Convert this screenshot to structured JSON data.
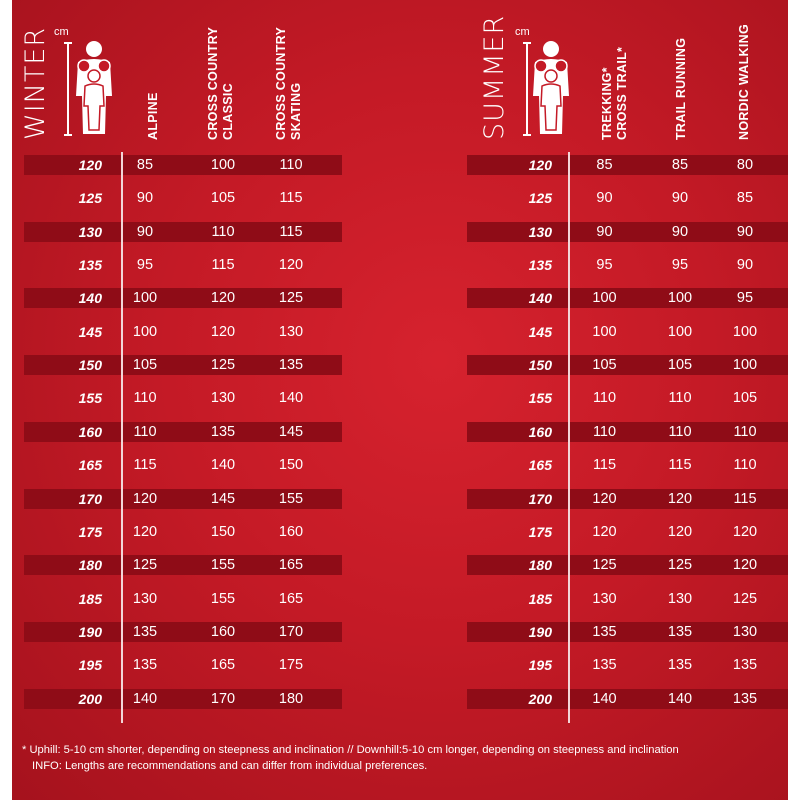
{
  "colors": {
    "background": "#c41a26",
    "stripe": "#8f0c17",
    "text": "#ffffff"
  },
  "winter": {
    "title": "WINTER",
    "unit": "cm",
    "icon": "family-icon",
    "columns": [
      [
        "ALPINE"
      ],
      [
        "CROSS COUNTRY",
        "CLASSIC"
      ],
      [
        "CROSS COUNTRY",
        "SKATING"
      ]
    ],
    "rows": [
      [
        "120",
        "85",
        "100",
        "110"
      ],
      [
        "125",
        "90",
        "105",
        "115"
      ],
      [
        "130",
        "90",
        "110",
        "115"
      ],
      [
        "135",
        "95",
        "115",
        "120"
      ],
      [
        "140",
        "100",
        "120",
        "125"
      ],
      [
        "145",
        "100",
        "120",
        "130"
      ],
      [
        "150",
        "105",
        "125",
        "135"
      ],
      [
        "155",
        "110",
        "130",
        "140"
      ],
      [
        "160",
        "110",
        "135",
        "145"
      ],
      [
        "165",
        "115",
        "140",
        "150"
      ],
      [
        "170",
        "120",
        "145",
        "155"
      ],
      [
        "175",
        "120",
        "150",
        "160"
      ],
      [
        "180",
        "125",
        "155",
        "165"
      ],
      [
        "185",
        "130",
        "155",
        "165"
      ],
      [
        "190",
        "135",
        "160",
        "170"
      ],
      [
        "195",
        "135",
        "165",
        "175"
      ],
      [
        "200",
        "140",
        "170",
        "180"
      ]
    ]
  },
  "summer": {
    "title": "SUMMER",
    "unit": "cm",
    "icon": "family-icon",
    "columns": [
      [
        "TREKKING*",
        "CROSS TRAIL*"
      ],
      [
        "TRAIL RUNNING"
      ],
      [
        "NORDIC WALKING"
      ]
    ],
    "rows": [
      [
        "120",
        "85",
        "85",
        "80"
      ],
      [
        "125",
        "90",
        "90",
        "85"
      ],
      [
        "130",
        "90",
        "90",
        "90"
      ],
      [
        "135",
        "95",
        "95",
        "90"
      ],
      [
        "140",
        "100",
        "100",
        "95"
      ],
      [
        "145",
        "100",
        "100",
        "100"
      ],
      [
        "150",
        "105",
        "105",
        "100"
      ],
      [
        "155",
        "110",
        "110",
        "105"
      ],
      [
        "160",
        "110",
        "110",
        "110"
      ],
      [
        "165",
        "115",
        "115",
        "110"
      ],
      [
        "170",
        "120",
        "120",
        "115"
      ],
      [
        "175",
        "120",
        "120",
        "120"
      ],
      [
        "180",
        "125",
        "125",
        "120"
      ],
      [
        "185",
        "130",
        "130",
        "125"
      ],
      [
        "190",
        "135",
        "135",
        "130"
      ],
      [
        "195",
        "135",
        "135",
        "135"
      ],
      [
        "200",
        "140",
        "140",
        "135"
      ]
    ]
  },
  "footnote": {
    "line1": "* Uphill: 5-10 cm shorter, depending on steepness and inclination // Downhill:5-10 cm longer, depending on steepness and inclination",
    "line2": "INFO: Lengths are recommendations and can differ from individual preferences."
  }
}
